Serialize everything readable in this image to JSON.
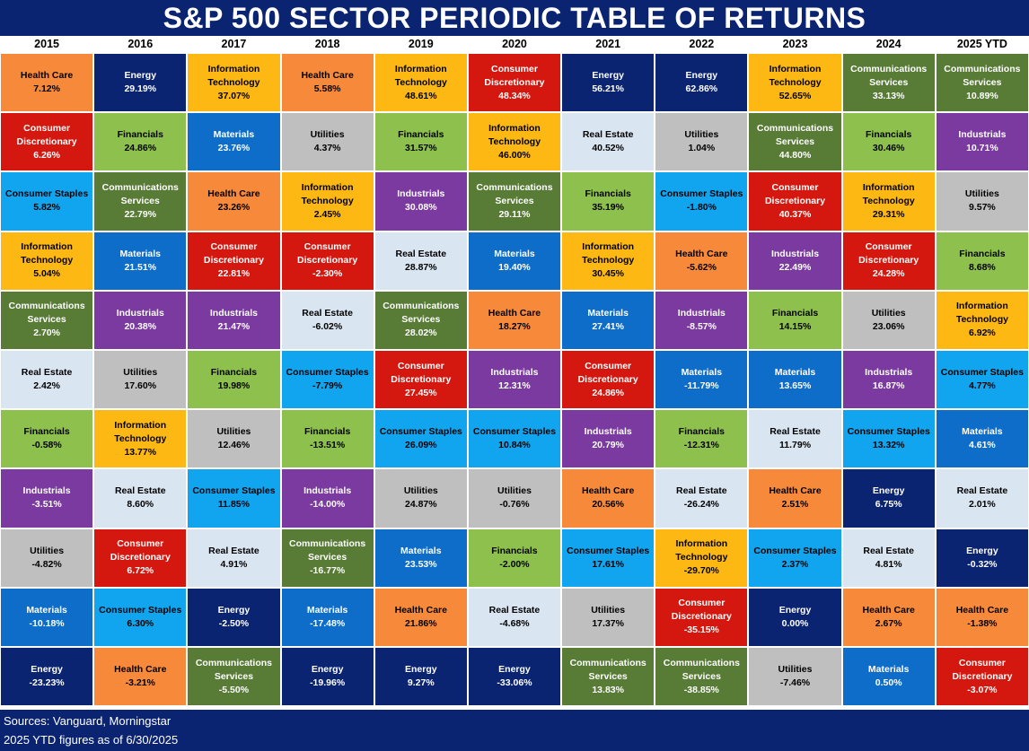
{
  "title": "S&P 500 SECTOR PERIODIC TABLE OF RETURNS",
  "footer": {
    "sources": "Sources: Vanguard, Morningstar",
    "note": "2025 YTD figures as of 6/30/2025"
  },
  "sector_colors": {
    "Health Care": {
      "bg": "#f7893b",
      "fg": "#000000"
    },
    "Energy": {
      "bg": "#0b2472",
      "fg": "#ffffff"
    },
    "Information Technology": {
      "bg": "#fdb813",
      "fg": "#000000"
    },
    "Consumer Discretionary": {
      "bg": "#d4180f",
      "fg": "#ffffff"
    },
    "Communications Services": {
      "bg": "#587c36",
      "fg": "#ffffff"
    },
    "Financials": {
      "bg": "#8dc04c",
      "fg": "#000000"
    },
    "Materials": {
      "bg": "#0e6dc8",
      "fg": "#ffffff"
    },
    "Utilities": {
      "bg": "#bfbfbf",
      "fg": "#000000"
    },
    "Industrials": {
      "bg": "#7a3aa0",
      "fg": "#ffffff"
    },
    "Consumer Staples": {
      "bg": "#12a5ef",
      "fg": "#000000"
    },
    "Real Estate": {
      "bg": "#dae5f2",
      "fg": "#000000"
    }
  },
  "chart_data": {
    "type": "table",
    "title": "S&P 500 SECTOR PERIODIC TABLE OF RETURNS",
    "columns": [
      {
        "year": "2015",
        "cells": [
          {
            "sector": "Health Care",
            "value": "7.12%"
          },
          {
            "sector": "Consumer Discretionary",
            "value": "6.26%"
          },
          {
            "sector": "Consumer Staples",
            "value": "5.82%"
          },
          {
            "sector": "Information Technology",
            "value": "5.04%"
          },
          {
            "sector": "Communications Services",
            "value": "2.70%"
          },
          {
            "sector": "Real Estate",
            "value": "2.42%"
          },
          {
            "sector": "Financials",
            "value": "-0.58%"
          },
          {
            "sector": "Industrials",
            "value": "-3.51%"
          },
          {
            "sector": "Utilities",
            "value": "-4.82%"
          },
          {
            "sector": "Materials",
            "value": "-10.18%"
          },
          {
            "sector": "Energy",
            "value": "-23.23%"
          }
        ]
      },
      {
        "year": "2016",
        "cells": [
          {
            "sector": "Energy",
            "value": "29.19%"
          },
          {
            "sector": "Financials",
            "value": "24.86%"
          },
          {
            "sector": "Communications Services",
            "value": "22.79%"
          },
          {
            "sector": "Materials",
            "value": "21.51%"
          },
          {
            "sector": "Industrials",
            "value": "20.38%"
          },
          {
            "sector": "Utilities",
            "value": "17.60%"
          },
          {
            "sector": "Information Technology",
            "value": "13.77%"
          },
          {
            "sector": "Real Estate",
            "value": "8.60%"
          },
          {
            "sector": "Consumer Discretionary",
            "value": "6.72%"
          },
          {
            "sector": "Consumer Staples",
            "value": "6.30%"
          },
          {
            "sector": "Health Care",
            "value": "-3.21%"
          }
        ]
      },
      {
        "year": "2017",
        "cells": [
          {
            "sector": "Information Technology",
            "value": "37.07%"
          },
          {
            "sector": "Materials",
            "value": "23.76%"
          },
          {
            "sector": "Health Care",
            "value": "23.26%"
          },
          {
            "sector": "Consumer Discretionary",
            "value": "22.81%"
          },
          {
            "sector": "Industrials",
            "value": "21.47%"
          },
          {
            "sector": "Financials",
            "value": "19.98%"
          },
          {
            "sector": "Utilities",
            "value": "12.46%"
          },
          {
            "sector": "Consumer Staples",
            "value": "11.85%"
          },
          {
            "sector": "Real Estate",
            "value": "4.91%"
          },
          {
            "sector": "Energy",
            "value": "-2.50%"
          },
          {
            "sector": "Communications Services",
            "value": "-5.50%"
          }
        ]
      },
      {
        "year": "2018",
        "cells": [
          {
            "sector": "Health Care",
            "value": "5.58%"
          },
          {
            "sector": "Utilities",
            "value": "4.37%"
          },
          {
            "sector": "Information Technology",
            "value": "2.45%"
          },
          {
            "sector": "Consumer Discretionary",
            "value": "-2.30%"
          },
          {
            "sector": "Real Estate",
            "value": "-6.02%"
          },
          {
            "sector": "Consumer Staples",
            "value": "-7.79%"
          },
          {
            "sector": "Financials",
            "value": "-13.51%"
          },
          {
            "sector": "Industrials",
            "value": "-14.00%"
          },
          {
            "sector": "Communications Services",
            "value": "-16.77%"
          },
          {
            "sector": "Materials",
            "value": "-17.48%"
          },
          {
            "sector": "Energy",
            "value": "-19.96%"
          }
        ]
      },
      {
        "year": "2019",
        "cells": [
          {
            "sector": "Information Technology",
            "value": "48.61%"
          },
          {
            "sector": "Financials",
            "value": "31.57%"
          },
          {
            "sector": "Industrials",
            "value": "30.08%"
          },
          {
            "sector": "Real Estate",
            "value": "28.87%"
          },
          {
            "sector": "Communications Services",
            "value": "28.02%"
          },
          {
            "sector": "Consumer Discretionary",
            "value": "27.45%"
          },
          {
            "sector": "Consumer Staples",
            "value": "26.09%"
          },
          {
            "sector": "Utilities",
            "value": "24.87%"
          },
          {
            "sector": "Materials",
            "value": "23.53%"
          },
          {
            "sector": "Health Care",
            "value": "21.86%"
          },
          {
            "sector": "Energy",
            "value": "9.27%"
          }
        ]
      },
      {
        "year": "2020",
        "cells": [
          {
            "sector": "Consumer Discretionary",
            "value": "48.34%"
          },
          {
            "sector": "Information Technology",
            "value": "46.00%"
          },
          {
            "sector": "Communications Services",
            "value": "29.11%"
          },
          {
            "sector": "Materials",
            "value": "19.40%"
          },
          {
            "sector": "Health Care",
            "value": "18.27%"
          },
          {
            "sector": "Industrials",
            "value": "12.31%"
          },
          {
            "sector": "Consumer Staples",
            "value": "10.84%"
          },
          {
            "sector": "Utilities",
            "value": "-0.76%"
          },
          {
            "sector": "Financials",
            "value": "-2.00%"
          },
          {
            "sector": "Real Estate",
            "value": "-4.68%"
          },
          {
            "sector": "Energy",
            "value": "-33.06%"
          }
        ]
      },
      {
        "year": "2021",
        "cells": [
          {
            "sector": "Energy",
            "value": "56.21%"
          },
          {
            "sector": "Real Estate",
            "value": "40.52%"
          },
          {
            "sector": "Financials",
            "value": "35.19%"
          },
          {
            "sector": "Information Technology",
            "value": "30.45%"
          },
          {
            "sector": "Materials",
            "value": "27.41%"
          },
          {
            "sector": "Consumer Discretionary",
            "value": "24.86%"
          },
          {
            "sector": "Industrials",
            "value": "20.79%"
          },
          {
            "sector": "Health Care",
            "value": "20.56%"
          },
          {
            "sector": "Consumer Staples",
            "value": "17.61%"
          },
          {
            "sector": "Utilities",
            "value": "17.37%"
          },
          {
            "sector": "Communications Services",
            "value": "13.83%"
          }
        ]
      },
      {
        "year": "2022",
        "cells": [
          {
            "sector": "Energy",
            "value": "62.86%"
          },
          {
            "sector": "Utilities",
            "value": "1.04%"
          },
          {
            "sector": "Consumer Staples",
            "value": "-1.80%"
          },
          {
            "sector": "Health Care",
            "value": "-5.62%"
          },
          {
            "sector": "Industrials",
            "value": "-8.57%"
          },
          {
            "sector": "Materials",
            "value": "-11.79%"
          },
          {
            "sector": "Financials",
            "value": "-12.31%"
          },
          {
            "sector": "Real Estate",
            "value": "-26.24%"
          },
          {
            "sector": "Information Technology",
            "value": "-29.70%"
          },
          {
            "sector": "Consumer Discretionary",
            "value": "-35.15%"
          },
          {
            "sector": "Communications Services",
            "value": "-38.85%"
          }
        ]
      },
      {
        "year": "2023",
        "cells": [
          {
            "sector": "Information Technology",
            "value": "52.65%"
          },
          {
            "sector": "Communications Services",
            "value": "44.80%"
          },
          {
            "sector": "Consumer Discretionary",
            "value": "40.37%"
          },
          {
            "sector": "Industrials",
            "value": "22.49%"
          },
          {
            "sector": "Financials",
            "value": "14.15%"
          },
          {
            "sector": "Materials",
            "value": "13.65%"
          },
          {
            "sector": "Real Estate",
            "value": "11.79%"
          },
          {
            "sector": "Health Care",
            "value": "2.51%"
          },
          {
            "sector": "Consumer Staples",
            "value": "2.37%"
          },
          {
            "sector": "Energy",
            "value": "0.00%"
          },
          {
            "sector": "Utilities",
            "value": "-7.46%"
          }
        ]
      },
      {
        "year": "2024",
        "cells": [
          {
            "sector": "Communications Services",
            "value": "33.13%"
          },
          {
            "sector": "Financials",
            "value": "30.46%"
          },
          {
            "sector": "Information Technology",
            "value": "29.31%"
          },
          {
            "sector": "Consumer Discretionary",
            "value": "24.28%"
          },
          {
            "sector": "Utilities",
            "value": "23.06%"
          },
          {
            "sector": "Industrials",
            "value": "16.87%"
          },
          {
            "sector": "Consumer Staples",
            "value": "13.32%"
          },
          {
            "sector": "Energy",
            "value": "6.75%"
          },
          {
            "sector": "Real Estate",
            "value": "4.81%"
          },
          {
            "sector": "Health Care",
            "value": "2.67%"
          },
          {
            "sector": "Materials",
            "value": "0.50%"
          }
        ]
      },
      {
        "year": "2025 YTD",
        "cells": [
          {
            "sector": "Communications Services",
            "value": "10.89%"
          },
          {
            "sector": "Industrials",
            "value": "10.71%"
          },
          {
            "sector": "Utilities",
            "value": "9.57%"
          },
          {
            "sector": "Financials",
            "value": "8.68%"
          },
          {
            "sector": "Information Technology",
            "value": "6.92%"
          },
          {
            "sector": "Consumer Staples",
            "value": "4.77%"
          },
          {
            "sector": "Materials",
            "value": "4.61%"
          },
          {
            "sector": "Real Estate",
            "value": "2.01%"
          },
          {
            "sector": "Energy",
            "value": "-0.32%"
          },
          {
            "sector": "Health Care",
            "value": "-1.38%"
          },
          {
            "sector": "Consumer Discretionary",
            "value": "-3.07%"
          }
        ]
      }
    ]
  }
}
